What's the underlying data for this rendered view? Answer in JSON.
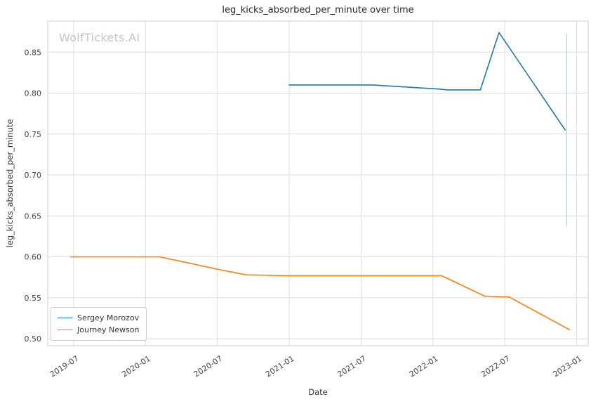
{
  "watermark": "WolfTickets.AI",
  "chart_data": {
    "type": "line",
    "title": "leg_kicks_absorbed_per_minute over time",
    "xlabel": "Date",
    "ylabel": "leg_kicks_absorbed_per_minute",
    "grid": true,
    "legend_position": "lower left",
    "xlim": [
      2019.32,
      2023.08
    ],
    "ylim": [
      0.4915,
      0.888
    ],
    "xticks": [
      {
        "value": 2019.5,
        "label": "2019-07"
      },
      {
        "value": 2020.0,
        "label": "2020-01"
      },
      {
        "value": 2020.5,
        "label": "2020-07"
      },
      {
        "value": 2021.0,
        "label": "2021-01"
      },
      {
        "value": 2021.5,
        "label": "2021-07"
      },
      {
        "value": 2022.0,
        "label": "2022-01"
      },
      {
        "value": 2022.5,
        "label": "2022-07"
      },
      {
        "value": 2023.0,
        "label": "2023-01"
      }
    ],
    "yticks": [
      {
        "value": 0.5,
        "label": "0.50"
      },
      {
        "value": 0.55,
        "label": "0.55"
      },
      {
        "value": 0.6,
        "label": "0.60"
      },
      {
        "value": 0.65,
        "label": "0.65"
      },
      {
        "value": 0.7,
        "label": "0.70"
      },
      {
        "value": 0.75,
        "label": "0.75"
      },
      {
        "value": 0.8,
        "label": "0.80"
      },
      {
        "value": 0.85,
        "label": "0.85"
      }
    ],
    "series": [
      {
        "name": "Sergey Morozov",
        "color": "#1f77b4",
        "points": [
          [
            2021.0,
            0.81
          ],
          [
            2021.5,
            0.81
          ],
          [
            2021.58,
            0.81
          ],
          [
            2022.04,
            0.805
          ],
          [
            2022.1,
            0.804
          ],
          [
            2022.33,
            0.804
          ],
          [
            2022.46,
            0.874
          ],
          [
            2022.92,
            0.755
          ]
        ]
      },
      {
        "name": "Journey Newson",
        "color": "#ff7f0e",
        "points": [
          [
            2019.48,
            0.6
          ],
          [
            2020.1,
            0.6
          ],
          [
            2020.5,
            0.585
          ],
          [
            2020.7,
            0.578
          ],
          [
            2021.0,
            0.577
          ],
          [
            2021.5,
            0.577
          ],
          [
            2022.06,
            0.577
          ],
          [
            2022.36,
            0.552
          ],
          [
            2022.53,
            0.551
          ],
          [
            2022.95,
            0.511
          ]
        ]
      }
    ],
    "annotations": [
      {
        "type": "vertical-segment",
        "x": 2022.93,
        "y_from": 0.637,
        "y_to": 0.873,
        "color": "#a8cee4"
      }
    ],
    "colors": {
      "grid": "#dddddd",
      "plot_border": "#cccccc",
      "tick_text": "#444444"
    }
  }
}
